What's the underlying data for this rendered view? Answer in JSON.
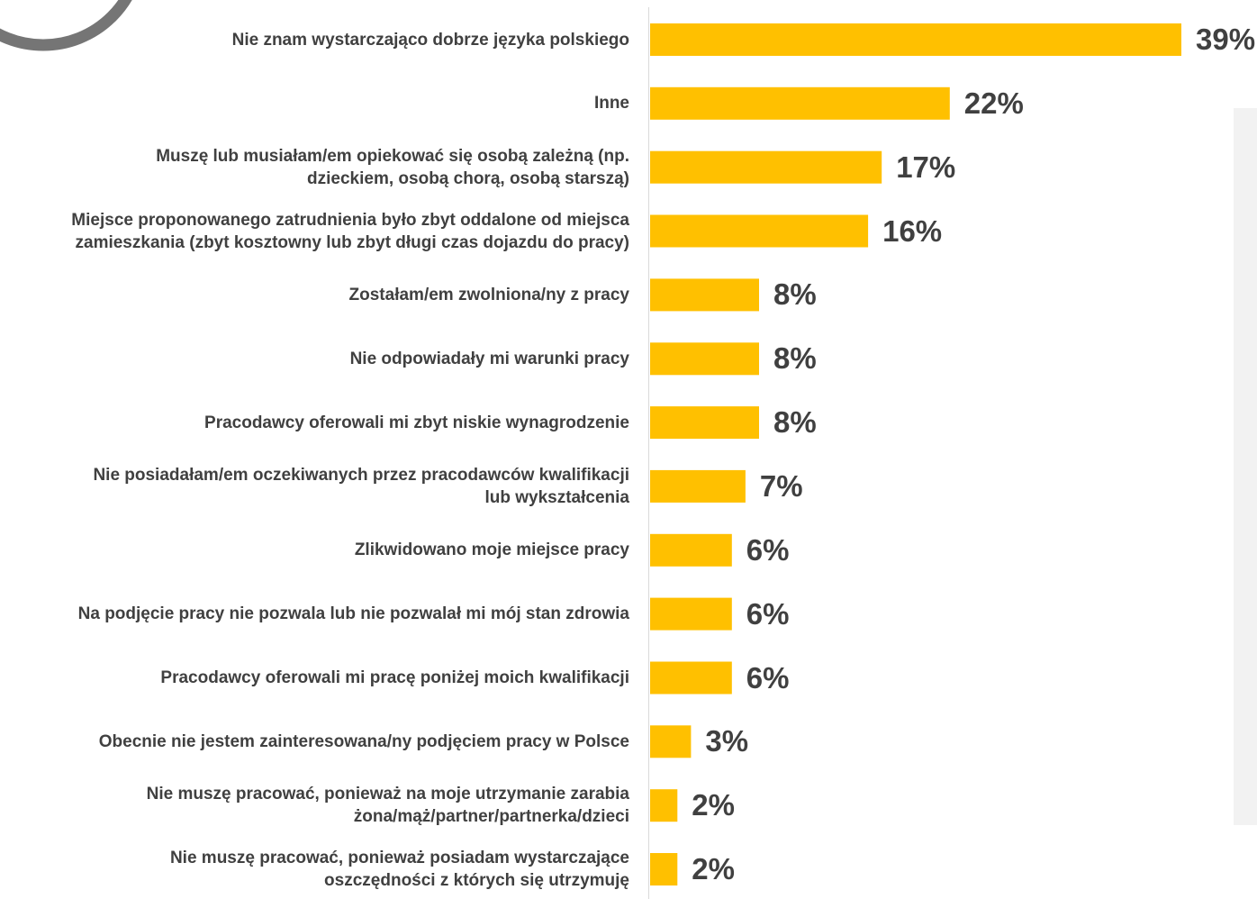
{
  "chart_data": {
    "type": "bar",
    "orientation": "horizontal",
    "categories": [
      "Nie znam wystarczająco dobrze języka polskiego",
      "Inne",
      "Muszę lub musiałam/em opiekować się osobą zależną (np. dzieckiem, osobą chorą, osobą starszą)",
      "Miejsce proponowanego zatrudnienia było zbyt oddalone od miejsca zamieszkania (zbyt kosztowny lub zbyt długi czas dojazdu do pracy)",
      "Zostałam/em zwolniona/ny z pracy",
      "Nie odpowiadały mi warunki pracy",
      "Pracodawcy oferowali mi zbyt niskie wynagrodzenie",
      "Nie posiadałam/em oczekiwanych przez pracodawców kwalifikacji lub wykształcenia",
      "Zlikwidowano moje miejsce pracy",
      "Na podjęcie pracy nie pozwala lub nie pozwalał mi mój stan zdrowia",
      "Pracodawcy oferowali mi pracę poniżej moich kwalifikacji",
      "Obecnie nie jestem zainteresowana/ny podjęciem pracy w Polsce",
      "Nie muszę pracować, ponieważ na moje utrzymanie zarabia żona/mąż/partner/partnerka/dzieci",
      "Nie muszę pracować, ponieważ posiadam wystarczające oszczędności z których się utrzymuję"
    ],
    "values": [
      39,
      22,
      17,
      16,
      8,
      8,
      8,
      7,
      6,
      6,
      6,
      3,
      2,
      2
    ],
    "value_labels": [
      "39%",
      "22%",
      "17%",
      "16%",
      "8%",
      "8%",
      "8%",
      "7%",
      "6%",
      "6%",
      "6%",
      "3%",
      "2%",
      "2%"
    ],
    "unit": "%",
    "xlim": [
      0,
      40
    ],
    "grid": false,
    "legend": "none",
    "colors": {
      "bar": "#FFC000",
      "label": "#404040",
      "axis": "#D9D9D9",
      "side_panel": "#F2F2F2",
      "circle": "#757575"
    }
  }
}
